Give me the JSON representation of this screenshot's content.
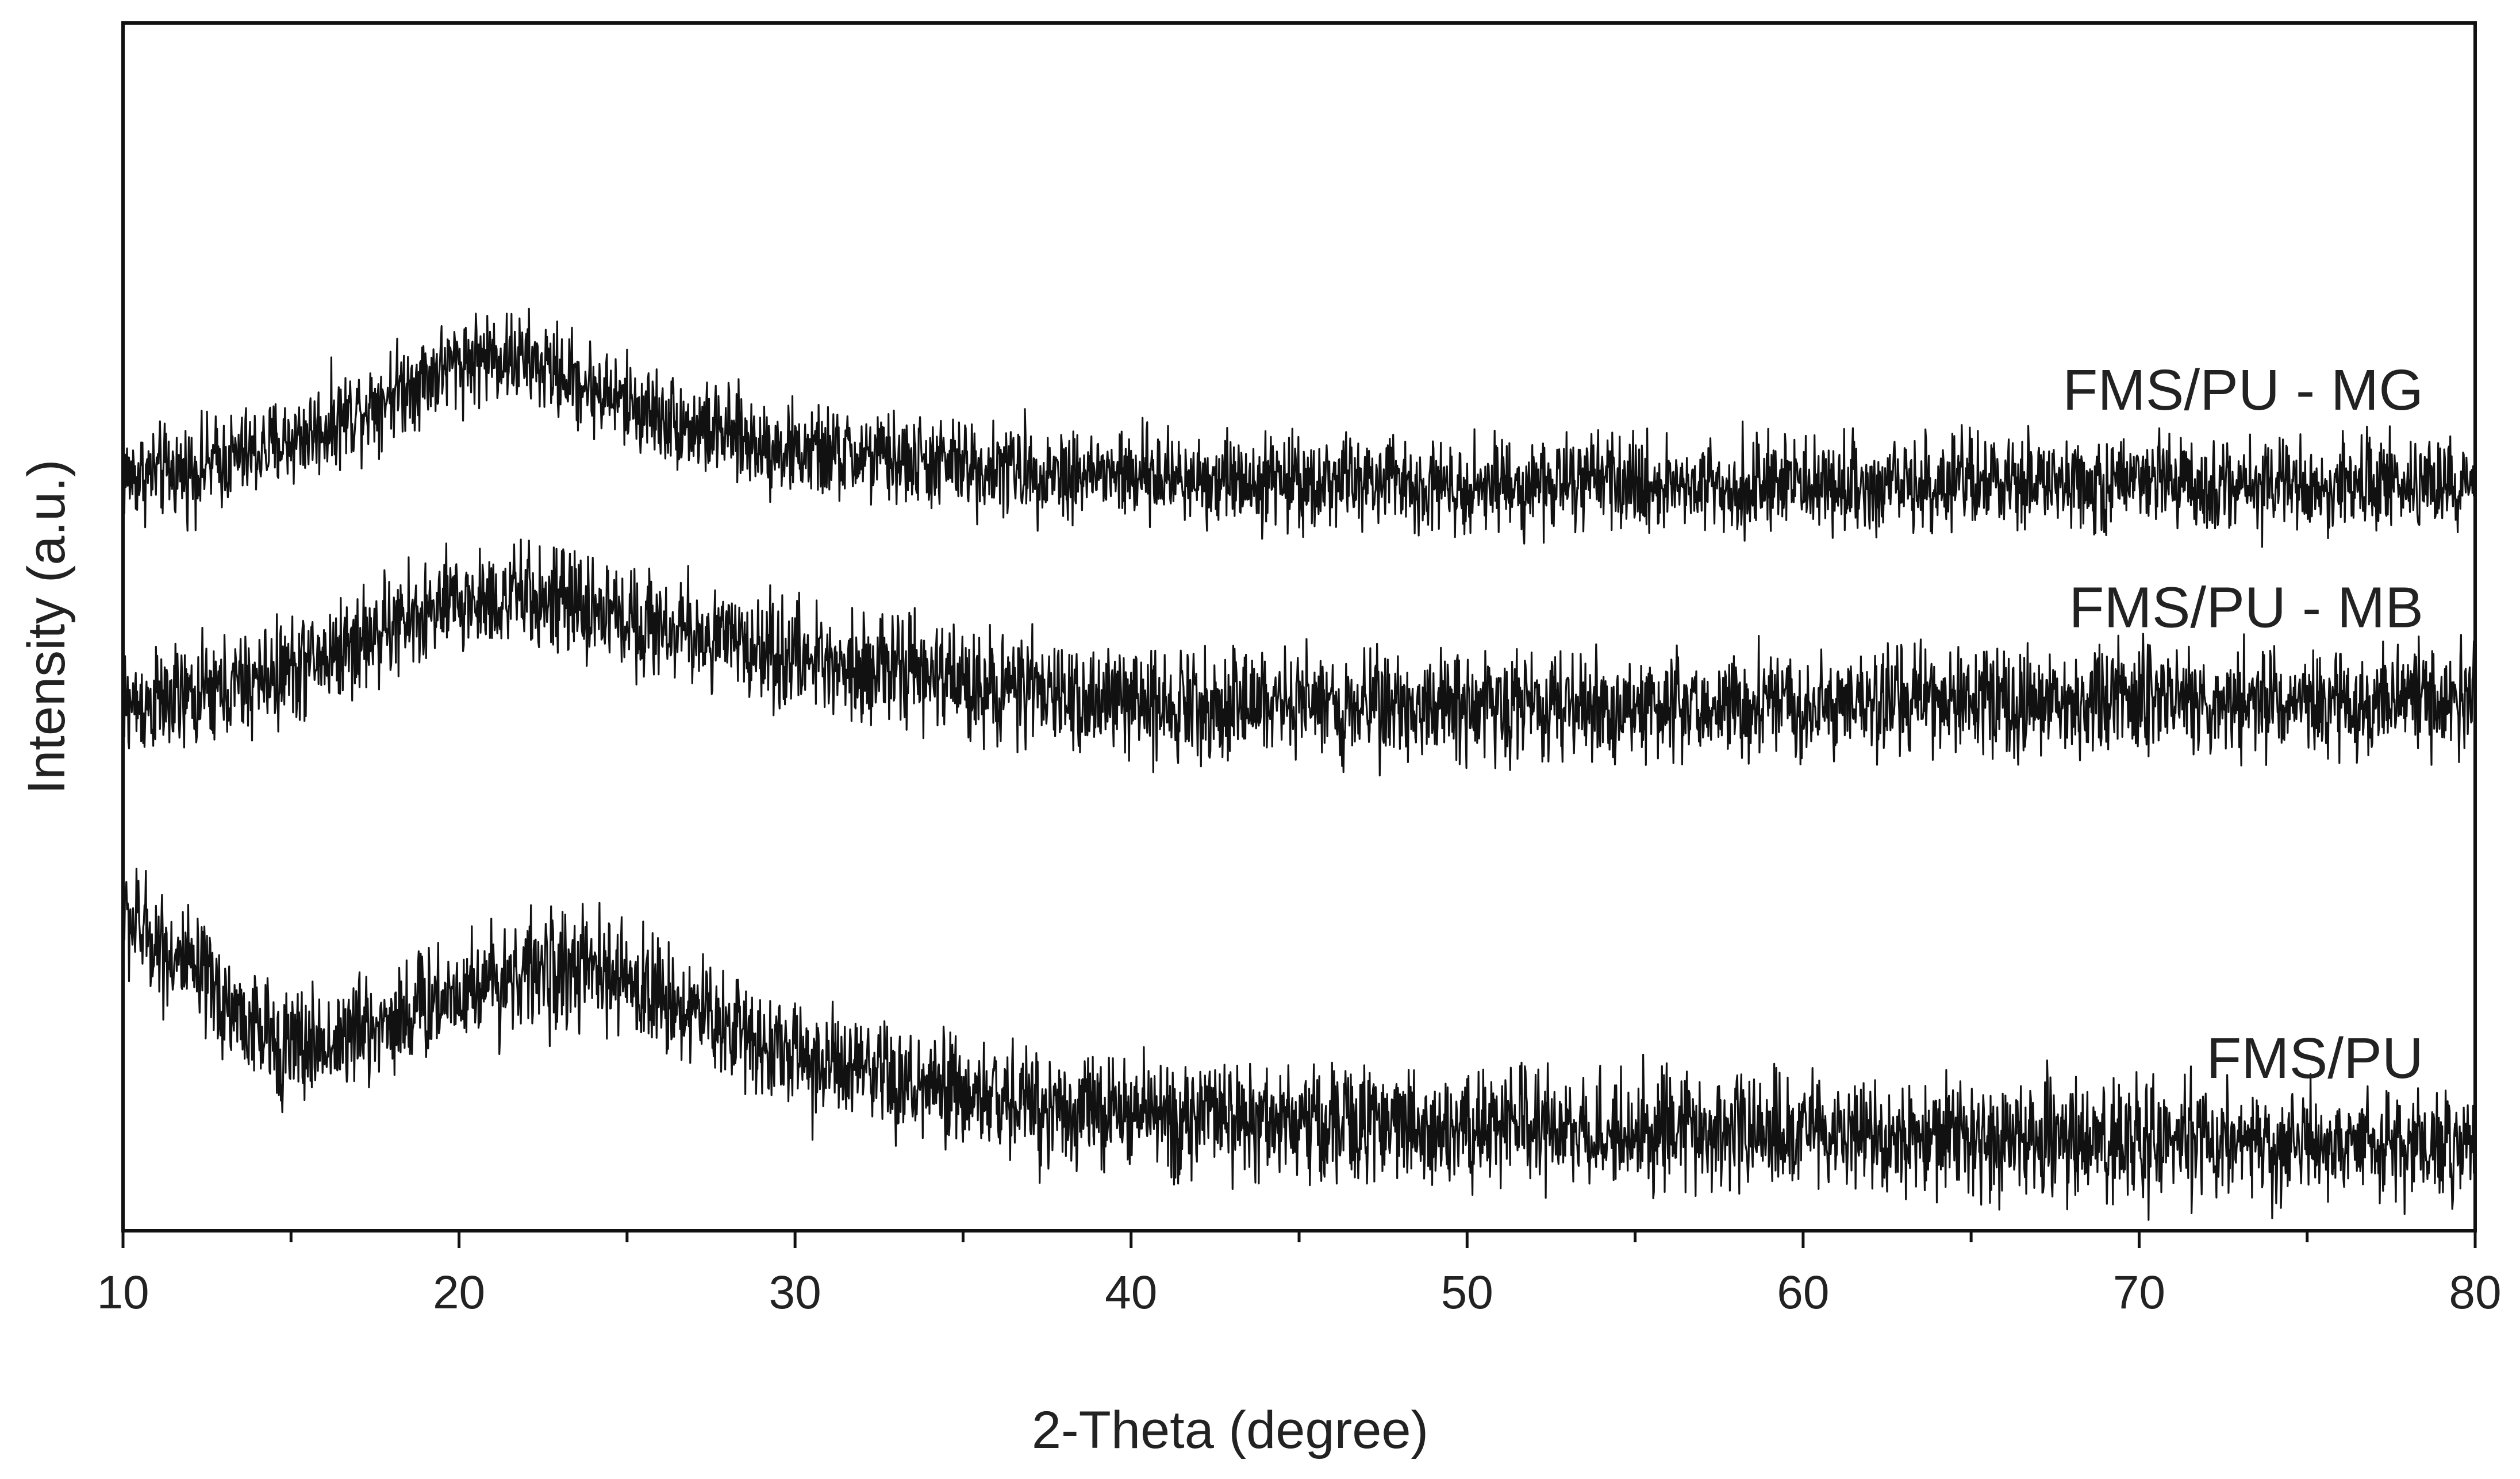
{
  "chart_data": {
    "type": "line",
    "title": "",
    "xlabel": "2-Theta (degree)",
    "ylabel": "Intensity (a.u.)",
    "xlim": [
      10,
      80
    ],
    "ylim": [
      0,
      100
    ],
    "x_ticks": [
      10,
      20,
      30,
      40,
      50,
      60,
      70,
      80
    ],
    "x_tick_labels": [
      "10",
      "20",
      "30",
      "40",
      "50",
      "60",
      "70",
      "80"
    ],
    "x_minor_step": 5,
    "y_ticks_shown": false,
    "grid": false,
    "legend": "none; series labeled inline at right end of each trace",
    "colors": {
      "line": "#111111",
      "axis": "#111111",
      "text": "#222222"
    },
    "series": [
      {
        "name": "FMS/PU - MG",
        "label": "FMS/PU - MG",
        "noise_amplitude": 4.2,
        "points": [
          [
            10,
            62.5
          ],
          [
            12,
            63.0
          ],
          [
            14,
            64.5
          ],
          [
            16,
            66.5
          ],
          [
            18,
            69.5
          ],
          [
            20,
            72.0
          ],
          [
            21,
            72.5
          ],
          [
            22,
            72.0
          ],
          [
            23,
            71.0
          ],
          [
            25,
            68.5
          ],
          [
            27,
            66.5
          ],
          [
            30,
            64.5
          ],
          [
            33,
            63.8
          ],
          [
            35,
            63.3
          ],
          [
            40,
            62.5
          ],
          [
            50,
            61.8
          ],
          [
            60,
            61.8
          ],
          [
            70,
            61.8
          ],
          [
            80,
            61.8
          ]
        ]
      },
      {
        "name": "FMS/PU - MB",
        "label": "FMS/PU - MB",
        "noise_amplitude": 4.8,
        "points": [
          [
            10,
            43.5
          ],
          [
            12,
            44.0
          ],
          [
            14,
            45.5
          ],
          [
            16,
            47.5
          ],
          [
            18,
            50.0
          ],
          [
            20,
            52.0
          ],
          [
            22,
            52.5
          ],
          [
            24,
            51.5
          ],
          [
            26,
            50.0
          ],
          [
            30,
            47.5
          ],
          [
            33,
            46.5
          ],
          [
            35,
            45.5
          ],
          [
            38,
            44.2
          ],
          [
            40,
            43.8
          ],
          [
            50,
            43.5
          ],
          [
            60,
            43.5
          ],
          [
            70,
            43.8
          ],
          [
            80,
            43.8
          ]
        ]
      },
      {
        "name": "FMS/PU",
        "label": "FMS/PU",
        "noise_amplitude": 5.2,
        "points": [
          [
            10,
            26.0
          ],
          [
            11,
            24.0
          ],
          [
            12,
            21.5
          ],
          [
            13,
            19.0
          ],
          [
            14,
            16.5
          ],
          [
            15,
            15.2
          ],
          [
            16,
            15.5
          ],
          [
            18,
            17.5
          ],
          [
            20,
            20.0
          ],
          [
            22,
            21.5
          ],
          [
            24,
            21.5
          ],
          [
            26,
            19.5
          ],
          [
            28,
            17.0
          ],
          [
            30,
            14.5
          ],
          [
            33,
            12.0
          ],
          [
            36,
            10.8
          ],
          [
            40,
            9.6
          ],
          [
            45,
            9.0
          ],
          [
            50,
            8.6
          ],
          [
            60,
            8.0
          ],
          [
            70,
            7.5
          ],
          [
            80,
            6.8
          ]
        ]
      }
    ]
  }
}
